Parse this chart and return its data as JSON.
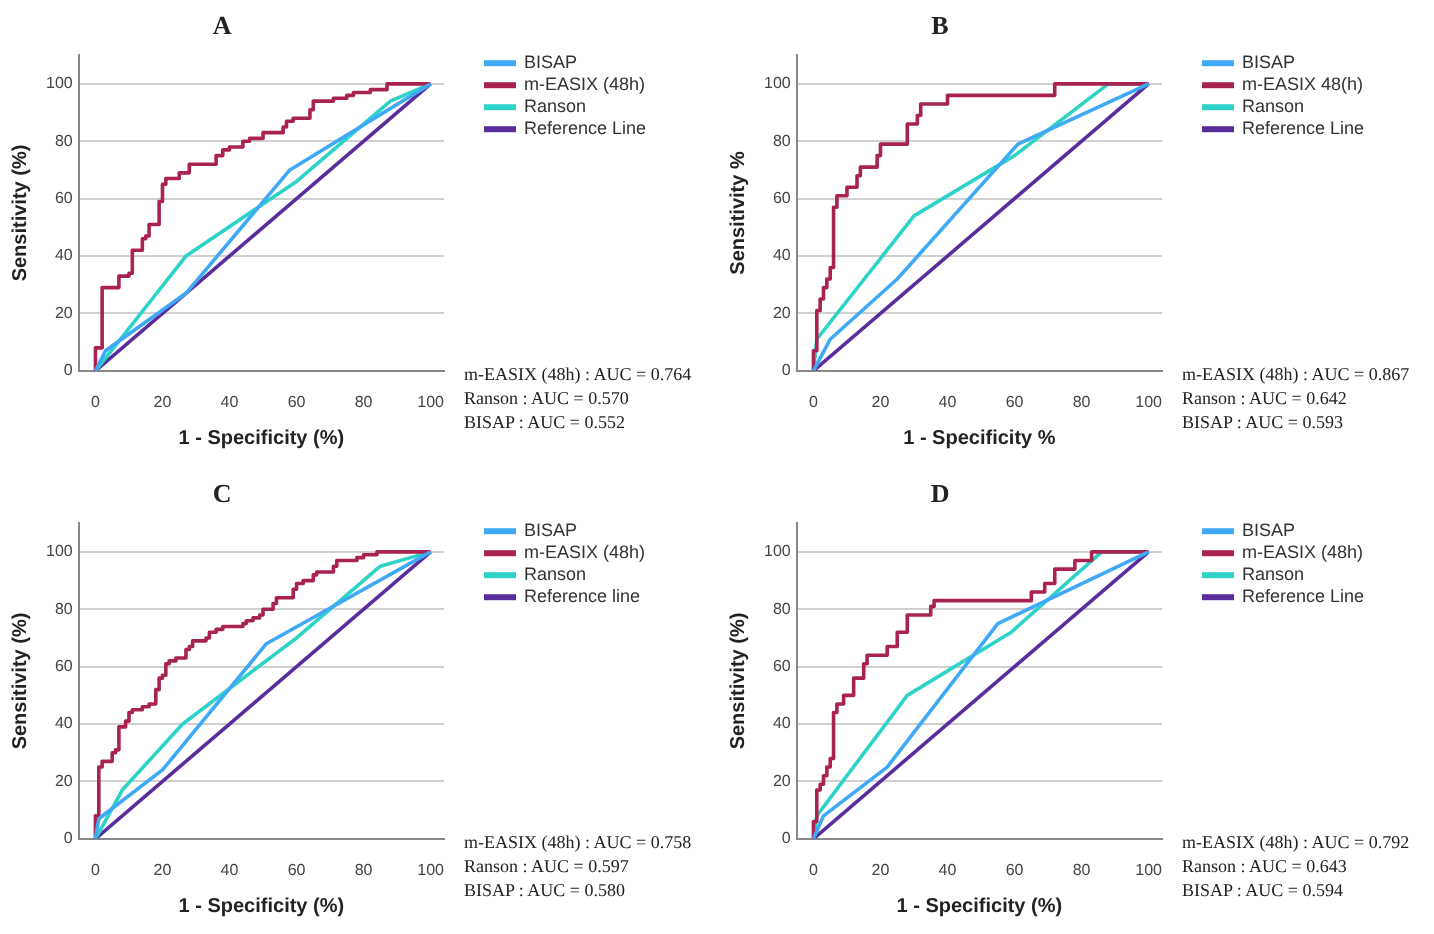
{
  "chart_data": [
    {
      "type": "line",
      "title": "A",
      "xlabel": "1 - Specificity (%)",
      "ylabel": "Sensitivity (%)",
      "xlim": [
        -5,
        104
      ],
      "ylim": [
        0,
        110
      ],
      "xticks": [
        0,
        20,
        40,
        60,
        80,
        100
      ],
      "yticks": [
        0,
        20,
        40,
        60,
        80,
        100
      ],
      "grid": "y",
      "legend": "right",
      "marker": "none",
      "annotations": [
        "m-EASIX (48h) : AUC = 0.764",
        "Ranson : AUC = 0.570",
        "BISAP : AUC = 0.552"
      ],
      "series": [
        {
          "name": "BISAP",
          "color": "#3fa9f5",
          "x": [
            0,
            3,
            27,
            58,
            100
          ],
          "values": [
            0,
            7,
            27,
            70,
            100
          ]
        },
        {
          "name": "m-EASIX (48h)",
          "color": "#a8234f",
          "x": [
            0,
            0,
            2,
            2,
            7,
            7,
            10,
            10,
            11,
            11,
            14,
            14,
            15,
            15,
            16,
            16,
            19,
            19,
            20,
            20,
            21,
            21,
            25,
            25,
            28,
            28,
            36,
            36,
            38,
            38,
            40,
            40,
            44,
            44,
            46,
            46,
            50,
            50,
            56,
            56,
            57,
            57,
            59,
            59,
            64,
            64,
            65,
            65,
            71,
            71,
            75,
            75,
            77,
            77,
            82,
            82,
            87,
            87,
            100
          ],
          "values": [
            0,
            8,
            8,
            29,
            29,
            33,
            33,
            34,
            34,
            42,
            42,
            46,
            46,
            47,
            47,
            51,
            51,
            59,
            59,
            65,
            65,
            67,
            67,
            69,
            69,
            72,
            72,
            75,
            75,
            77,
            77,
            78,
            78,
            80,
            80,
            81,
            81,
            83,
            83,
            85,
            85,
            87,
            87,
            88,
            88,
            91,
            91,
            94,
            94,
            95,
            95,
            96,
            96,
            97,
            97,
            98,
            98,
            100,
            100
          ]
        },
        {
          "name": "Ranson",
          "color": "#2ed3c8",
          "x": [
            0,
            27,
            60,
            88,
            100
          ],
          "values": [
            0,
            40,
            66,
            94,
            100
          ]
        },
        {
          "name": "Reference Line",
          "color": "#5a2d9c",
          "x": [
            0,
            100
          ],
          "values": [
            0,
            100
          ]
        }
      ]
    },
    {
      "type": "line",
      "title": "B",
      "xlabel": "1 - Specificity %",
      "ylabel": "Sensitivity %",
      "xlim": [
        -5,
        104
      ],
      "ylim": [
        0,
        110
      ],
      "xticks": [
        0,
        20,
        40,
        60,
        80,
        100
      ],
      "yticks": [
        0,
        20,
        40,
        60,
        80,
        100
      ],
      "grid": "y",
      "legend": "right",
      "marker": "none",
      "annotations": [
        "m-EASIX (48h) : AUC = 0.867",
        "Ranson : AUC = 0.642",
        "BISAP : AUC = 0.593"
      ],
      "series": [
        {
          "name": "BISAP",
          "color": "#3fa9f5",
          "x": [
            0,
            5,
            25,
            61,
            100
          ],
          "values": [
            0,
            11,
            32,
            79,
            100
          ]
        },
        {
          "name": "m-EASIX 48(h)",
          "color": "#a8234f",
          "x": [
            0,
            0,
            1,
            1,
            2,
            2,
            3,
            3,
            4,
            4,
            5,
            5,
            6,
            6,
            7,
            7,
            10,
            10,
            13,
            13,
            14,
            14,
            19,
            19,
            20,
            20,
            28,
            28,
            31,
            31,
            32,
            32,
            40,
            40,
            72,
            72,
            100
          ],
          "values": [
            0,
            7,
            7,
            21,
            21,
            25,
            25,
            29,
            29,
            32,
            32,
            36,
            36,
            57,
            57,
            61,
            61,
            64,
            64,
            68,
            68,
            71,
            71,
            75,
            75,
            79,
            79,
            86,
            86,
            89,
            89,
            93,
            93,
            96,
            96,
            100,
            100
          ]
        },
        {
          "name": "Ranson",
          "color": "#2ed3c8",
          "x": [
            0,
            1,
            30,
            60,
            88,
            100
          ],
          "values": [
            0,
            11,
            54,
            75,
            100,
            100
          ]
        },
        {
          "name": "Reference Line",
          "color": "#5a2d9c",
          "x": [
            0,
            100
          ],
          "values": [
            0,
            100
          ]
        }
      ]
    },
    {
      "type": "line",
      "title": "C",
      "xlabel": "1 - Specificity (%)",
      "ylabel": "Sensitivity (%)",
      "xlim": [
        -5,
        104
      ],
      "ylim": [
        0,
        110
      ],
      "xticks": [
        0,
        20,
        40,
        60,
        80,
        100
      ],
      "yticks": [
        0,
        20,
        40,
        60,
        80,
        100
      ],
      "grid": "y",
      "legend": "right",
      "marker": "none",
      "annotations": [
        "m-EASIX (48h) : AUC = 0.758",
        "Ranson : AUC = 0.597",
        "BISAP : AUC = 0.580"
      ],
      "series": [
        {
          "name": "BISAP",
          "color": "#3fa9f5",
          "x": [
            0,
            1,
            20,
            51,
            100
          ],
          "values": [
            0,
            7,
            24,
            68,
            100
          ]
        },
        {
          "name": "m-EASIX (48h)",
          "color": "#a8234f",
          "x": [
            0,
            0,
            1,
            1,
            2,
            2,
            5,
            5,
            6,
            6,
            7,
            7,
            9,
            9,
            10,
            10,
            11,
            11,
            14,
            14,
            16,
            16,
            18,
            18,
            19,
            19,
            20,
            20,
            21,
            21,
            22,
            22,
            24,
            24,
            27,
            27,
            28,
            28,
            29,
            29,
            33,
            33,
            34,
            34,
            36,
            36,
            38,
            38,
            44,
            44,
            45,
            45,
            47,
            47,
            49,
            49,
            50,
            50,
            53,
            53,
            54,
            54,
            59,
            59,
            60,
            60,
            62,
            62,
            65,
            65,
            66,
            66,
            71,
            71,
            72,
            72,
            78,
            78,
            80,
            80,
            84,
            84,
            100
          ],
          "values": [
            0,
            8,
            8,
            25,
            25,
            27,
            27,
            30,
            30,
            31,
            31,
            39,
            39,
            41,
            41,
            44,
            44,
            45,
            45,
            46,
            46,
            47,
            47,
            52,
            52,
            56,
            56,
            57,
            57,
            61,
            61,
            62,
            62,
            63,
            63,
            66,
            66,
            67,
            67,
            69,
            69,
            70,
            70,
            72,
            72,
            73,
            73,
            74,
            74,
            75,
            75,
            76,
            76,
            77,
            77,
            78,
            78,
            80,
            80,
            82,
            82,
            84,
            84,
            87,
            87,
            89,
            89,
            90,
            90,
            92,
            92,
            93,
            93,
            95,
            95,
            97,
            97,
            98,
            98,
            99,
            99,
            100,
            100
          ]
        },
        {
          "name": "Ranson",
          "color": "#2ed3c8",
          "x": [
            0,
            8,
            26,
            60,
            85,
            100
          ],
          "values": [
            0,
            17,
            40,
            70,
            95,
            100
          ]
        },
        {
          "name": "Reference line",
          "color": "#5a2d9c",
          "x": [
            0,
            100
          ],
          "values": [
            0,
            100
          ]
        }
      ]
    },
    {
      "type": "line",
      "title": "D",
      "xlabel": "1 - Specificity (%)",
      "ylabel": "Sensitivity (%)",
      "xlim": [
        -5,
        104
      ],
      "ylim": [
        0,
        110
      ],
      "xticks": [
        0,
        20,
        40,
        60,
        80,
        100
      ],
      "yticks": [
        0,
        20,
        40,
        60,
        80,
        100
      ],
      "grid": "y",
      "legend": "right",
      "marker": "none",
      "annotations": [
        "m-EASIX (48h) : AUC = 0.792",
        "Ranson : AUC = 0.643",
        "BISAP : AUC = 0.594"
      ],
      "series": [
        {
          "name": "BISAP",
          "color": "#3fa9f5",
          "x": [
            0,
            3,
            22,
            55,
            100
          ],
          "values": [
            0,
            8,
            25,
            75,
            100
          ]
        },
        {
          "name": "m-EASIX (48h)",
          "color": "#a8234f",
          "x": [
            0,
            0,
            1,
            1,
            2,
            2,
            3,
            3,
            4,
            4,
            5,
            5,
            6,
            6,
            7,
            7,
            9,
            9,
            12,
            12,
            15,
            15,
            16,
            16,
            22,
            22,
            25,
            25,
            28,
            28,
            35,
            35,
            36,
            36,
            65,
            65,
            69,
            69,
            72,
            72,
            78,
            78,
            83,
            83,
            100
          ],
          "values": [
            0,
            6,
            6,
            17,
            17,
            19,
            19,
            22,
            22,
            25,
            25,
            28,
            28,
            44,
            44,
            47,
            47,
            50,
            50,
            56,
            56,
            61,
            61,
            64,
            64,
            67,
            67,
            72,
            72,
            78,
            78,
            81,
            81,
            83,
            83,
            86,
            86,
            89,
            89,
            94,
            94,
            97,
            97,
            100,
            100
          ]
        },
        {
          "name": "Ranson",
          "color": "#2ed3c8",
          "x": [
            0,
            1,
            28,
            59,
            86,
            100
          ],
          "values": [
            0,
            8,
            50,
            72,
            100,
            100
          ]
        },
        {
          "name": "Reference Line",
          "color": "#5a2d9c",
          "x": [
            0,
            100
          ],
          "values": [
            0,
            100
          ]
        }
      ]
    }
  ]
}
